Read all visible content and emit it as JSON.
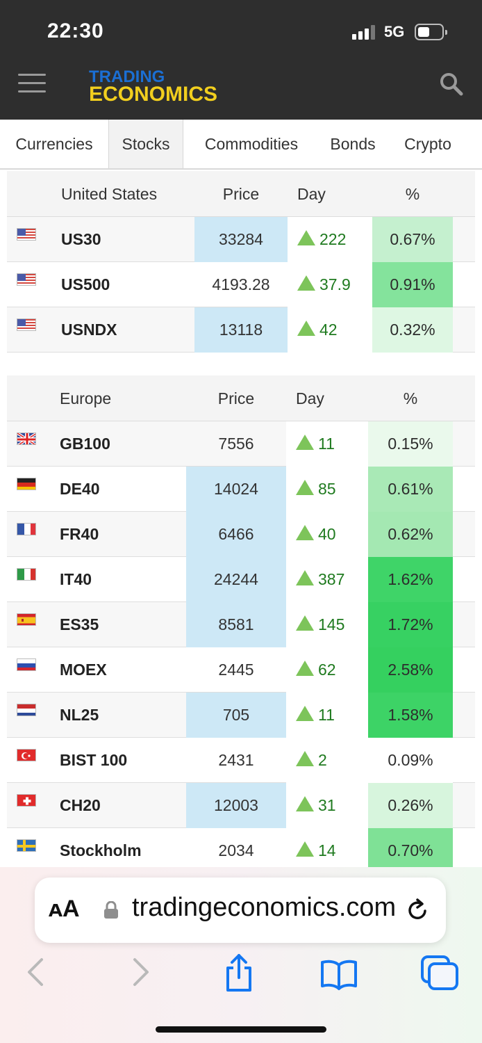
{
  "status_bar": {
    "time": "22:30",
    "network": "5G"
  },
  "header": {
    "logo_line1": "TRADING",
    "logo_line2": "ECONOMICS"
  },
  "tabs": [
    {
      "label": "Currencies",
      "active": false
    },
    {
      "label": "Stocks",
      "active": true
    },
    {
      "label": "Commodities",
      "active": false
    },
    {
      "label": "Bonds",
      "active": false
    },
    {
      "label": "Crypto",
      "active": false
    }
  ],
  "us_table": {
    "columns": [
      "United States",
      "Price",
      "Day",
      "%"
    ],
    "rows": [
      {
        "flag": "us-flag-icon",
        "name": "US30",
        "price": "33284",
        "day": "222",
        "pct": "0.67%",
        "price_highlight": true,
        "pct_color": "#c5f0cf"
      },
      {
        "flag": "us-flag-icon",
        "name": "US500",
        "price": "4193.28",
        "day": "37.9",
        "pct": "0.91%",
        "price_highlight": false,
        "pct_color": "#84e39c"
      },
      {
        "flag": "us-flag-icon",
        "name": "USNDX",
        "price": "13118",
        "day": "42",
        "pct": "0.32%",
        "price_highlight": true,
        "pct_color": "#def7e3"
      }
    ]
  },
  "europe_table": {
    "columns": [
      "Europe",
      "Price",
      "Day",
      "%"
    ],
    "rows": [
      {
        "flag": "uk-flag-icon",
        "name": "GB100",
        "price": "7556",
        "day": "11",
        "pct": "0.15%",
        "price_highlight": false,
        "pct_color": "#eaf9ec"
      },
      {
        "flag": "germany-flag-icon",
        "name": "DE40",
        "price": "14024",
        "day": "85",
        "pct": "0.61%",
        "price_highlight": true,
        "pct_color": "#a9e9b6"
      },
      {
        "flag": "france-flag-icon",
        "name": "FR40",
        "price": "6466",
        "day": "40",
        "pct": "0.62%",
        "price_highlight": true,
        "pct_color": "#a4e8b2"
      },
      {
        "flag": "italy-flag-icon",
        "name": "IT40",
        "price": "24244",
        "day": "387",
        "pct": "1.62%",
        "price_highlight": true,
        "pct_color": "#3fd468"
      },
      {
        "flag": "spain-flag-icon",
        "name": "ES35",
        "price": "8581",
        "day": "145",
        "pct": "1.72%",
        "price_highlight": true,
        "pct_color": "#37d162"
      },
      {
        "flag": "russia-flag-icon",
        "name": "MOEX",
        "price": "2445",
        "day": "62",
        "pct": "2.58%",
        "price_highlight": false,
        "pct_color": "#35d05f"
      },
      {
        "flag": "netherlands-flag-icon",
        "name": "NL25",
        "price": "705",
        "day": "11",
        "pct": "1.58%",
        "price_highlight": true,
        "pct_color": "#3dd366"
      },
      {
        "flag": "turkey-flag-icon",
        "name": "BIST 100",
        "price": "2431",
        "day": "2",
        "pct": "0.09%",
        "price_highlight": false,
        "pct_color": "#ffffff"
      },
      {
        "flag": "switzerland-flag-icon",
        "name": "CH20",
        "price": "12003",
        "day": "31",
        "pct": "0.26%",
        "price_highlight": true,
        "pct_color": "#d7f5dd"
      },
      {
        "flag": "sweden-flag-icon",
        "name": "Stockholm",
        "price": "2034",
        "day": "14",
        "pct": "0.70%",
        "price_highlight": false,
        "pct_color": "#7fe196"
      }
    ]
  },
  "safari": {
    "text_size_label": "ᴀA",
    "url": "tradingeconomics.com"
  },
  "colors": {
    "price_highlight": "#cde8f6",
    "up_arrow": "#7dc45a",
    "up_text": "#1f7a1f",
    "header_bg": "#2e2e2e"
  }
}
